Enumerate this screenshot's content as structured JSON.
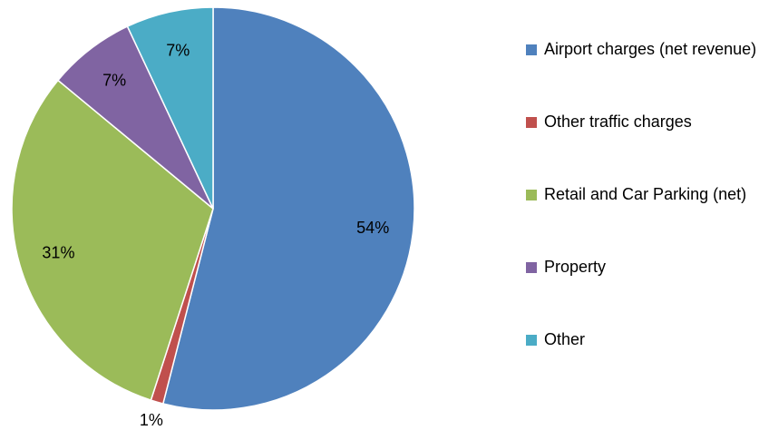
{
  "chart_data": {
    "type": "pie",
    "categories": [
      "Airport charges (net revenue)",
      "Other traffic charges",
      "Retail and Car Parking (net)",
      "Property",
      "Other"
    ],
    "values": [
      54,
      1,
      31,
      7,
      7
    ],
    "value_labels": [
      "54%",
      "1%",
      "31%",
      "7%",
      "7%"
    ],
    "colors": [
      "#4f81bd",
      "#c0504d",
      "#9bbb59",
      "#8064a2",
      "#4bacc6"
    ],
    "legend": "right"
  }
}
